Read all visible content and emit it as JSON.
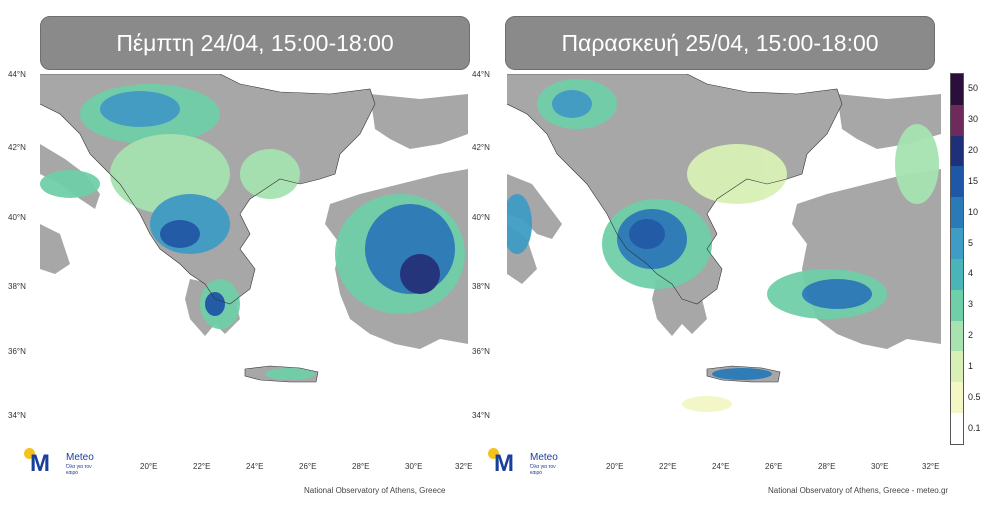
{
  "panels": [
    {
      "title": "Πέμπτη 24/04, 15:00-18:00",
      "footer": "National Observatory of Athens, Greece",
      "lat_ticks": [
        "44°N",
        "42°N",
        "40°N",
        "38°N",
        "36°N",
        "34°N"
      ],
      "lon_ticks": [
        "20°E",
        "22°E",
        "24°E",
        "26°E",
        "28°E",
        "30°E",
        "32°E"
      ]
    },
    {
      "title": "Παρασκευή 25/04, 15:00-18:00",
      "footer": "National Observatory of Athens, Greece - meteo.gr",
      "lat_ticks": [
        "44°N",
        "42°N",
        "40°N",
        "38°N",
        "36°N",
        "34°N"
      ],
      "lon_ticks": [
        "20°E",
        "22°E",
        "24°E",
        "26°E",
        "28°E",
        "30°E",
        "32°E"
      ]
    }
  ],
  "logo": {
    "name": "Meteo",
    "tagline": "Όλα για τον καιρό",
    "brand_color": "#1a3e9c",
    "dot_color": "#f7c31b"
  },
  "colorbar": {
    "labels": [
      "50",
      "30",
      "20",
      "15",
      "10",
      "5",
      "4",
      "3",
      "2",
      "1",
      "0.5",
      "0.1"
    ],
    "colors": [
      "#2a0f3a",
      "#6e2a5a",
      "#1f2f7a",
      "#1e57a6",
      "#2a7ab8",
      "#3f9cc4",
      "#4ab5b8",
      "#6fcfa8",
      "#a6e3b0",
      "#d8f0b5",
      "#f2f7c4",
      "#ffffff"
    ]
  },
  "colors": {
    "land": "#a7a7a7",
    "sea": "#ffffff"
  },
  "icons": {
    "logo": "meteo-logo-icon"
  }
}
